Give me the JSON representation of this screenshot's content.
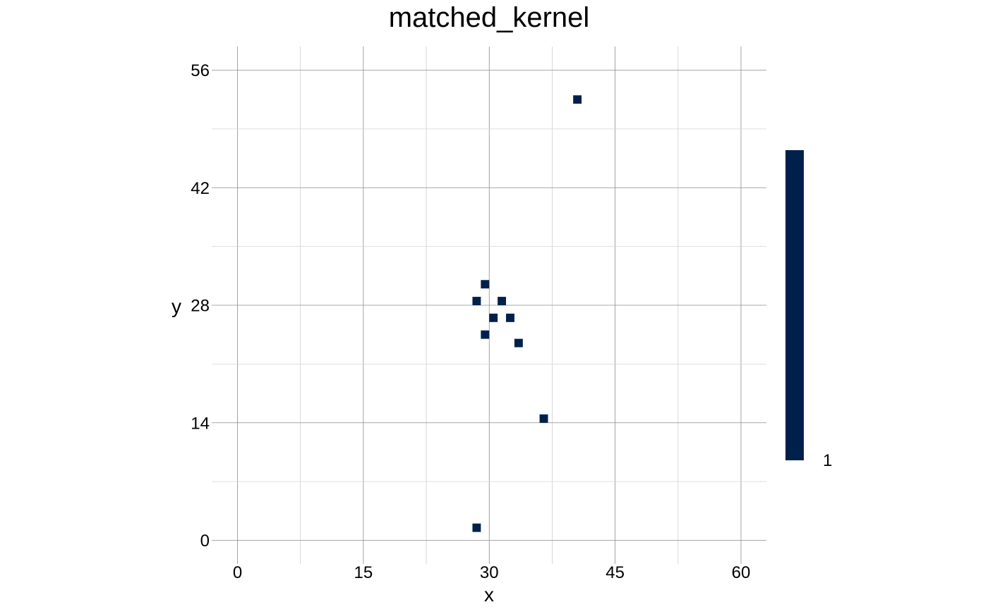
{
  "chart_data": {
    "type": "heatmap",
    "title": "matched_kernel",
    "xlabel": "x",
    "ylabel": "y",
    "xlim": [
      -2.5,
      63
    ],
    "ylim": [
      -2.8,
      56.5
    ],
    "x_ticks": [
      0,
      15,
      30,
      45,
      60
    ],
    "y_ticks": [
      0,
      14,
      28,
      42,
      56
    ],
    "x_tick_labels": [
      "0",
      "15",
      "30",
      "45",
      "60"
    ],
    "y_tick_labels": [
      "0",
      "14",
      "28",
      "42",
      "56"
    ],
    "grid": true,
    "cells": [
      {
        "x": 40.5,
        "y": 52.5,
        "value": 1
      },
      {
        "x": 29.5,
        "y": 30.5,
        "value": 1
      },
      {
        "x": 28.5,
        "y": 28.5,
        "value": 1
      },
      {
        "x": 31.5,
        "y": 28.5,
        "value": 1
      },
      {
        "x": 30.5,
        "y": 26.5,
        "value": 1
      },
      {
        "x": 32.5,
        "y": 26.5,
        "value": 1
      },
      {
        "x": 29.5,
        "y": 24.5,
        "value": 1
      },
      {
        "x": 33.5,
        "y": 23.5,
        "value": 1
      },
      {
        "x": 36.5,
        "y": 14.5,
        "value": 1
      },
      {
        "x": 28.5,
        "y": 1.5,
        "value": 1
      }
    ],
    "cell_size": 1,
    "colorbar": {
      "color": "#00204c",
      "tick_labels": [
        "1"
      ],
      "placement": "right"
    },
    "cell_color": "#00204c",
    "gridline_color": "#8c8c8c"
  }
}
